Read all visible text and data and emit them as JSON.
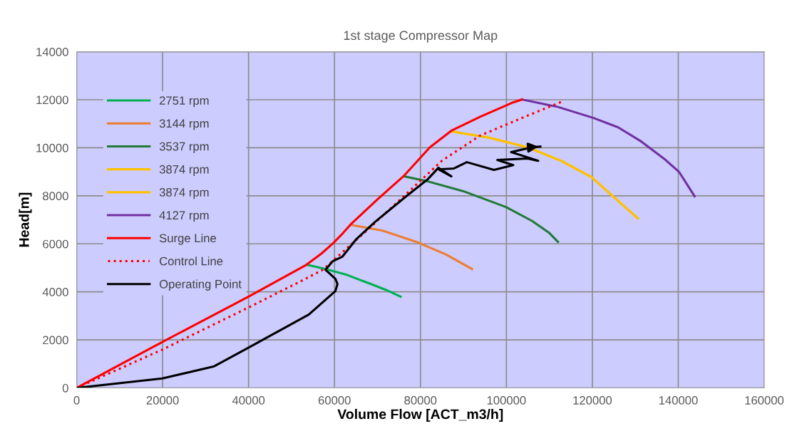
{
  "chart_data": {
    "type": "line",
    "title": "1st stage Compressor Map",
    "xlabel": "Volume Flow [ACT_m3/h]",
    "ylabel": "Head[m]",
    "xlim": [
      0,
      160000
    ],
    "xticks": [
      0,
      20000,
      40000,
      60000,
      80000,
      100000,
      120000,
      140000,
      160000
    ],
    "ylim": [
      0,
      14000
    ],
    "yticks": [
      0,
      2000,
      4000,
      6000,
      8000,
      10000,
      12000,
      14000
    ],
    "grid": true,
    "legend": "top left",
    "series": [
      {
        "name": "2751 rpm",
        "color": "#00b050",
        "x": [
          53500,
          57300,
          63000,
          68400,
          72000,
          75400
        ],
        "values": [
          5130,
          4980,
          4700,
          4330,
          4080,
          3800
        ]
      },
      {
        "name": "3144 rpm",
        "color": "#ed7d31",
        "x": [
          63800,
          71200,
          79500,
          86000,
          92000
        ],
        "values": [
          6790,
          6550,
          6050,
          5550,
          4950
        ]
      },
      {
        "name": "3537 rpm",
        "color": "#217a36",
        "x": [
          76200,
          81700,
          90000,
          99900,
          106000,
          110000,
          112000
        ],
        "values": [
          8810,
          8600,
          8190,
          7530,
          6950,
          6450,
          6080
        ]
      },
      {
        "name": "3874 rpm",
        "color": "#ffc000",
        "x": [
          87200,
          96000,
          104900,
          112700,
          119800,
          125000,
          130600
        ],
        "values": [
          10680,
          10420,
          10020,
          9460,
          8780,
          7950,
          7060
        ]
      },
      {
        "name": "3874 rpm",
        "color": "#ffc000",
        "x": [
          87200,
          96000,
          104900,
          112700,
          119800,
          125000,
          130600
        ],
        "values": [
          10680,
          10420,
          10020,
          9460,
          8780,
          7950,
          7060
        ]
      },
      {
        "name": "4127 rpm",
        "color": "#7030a0",
        "x": [
          103600,
          112000,
          120300,
          126000,
          131400,
          137000,
          140200,
          143800
        ],
        "values": [
          12010,
          11700,
          11240,
          10850,
          10260,
          9500,
          8990,
          7980
        ]
      },
      {
        "name": "Surge Line",
        "color": "#ff0000",
        "x": [
          0,
          20000,
          40000,
          53500,
          57000,
          59650,
          62000,
          64000,
          70000,
          76200,
          82200,
          87200,
          94000,
          101600,
          103600
        ],
        "values": [
          0,
          1920,
          3800,
          5130,
          5600,
          6020,
          6450,
          6850,
          7850,
          8840,
          10020,
          10710,
          11300,
          11890,
          12010
        ]
      },
      {
        "name": "Control Line",
        "color": "#ff0000",
        "line_style": "dotted",
        "x": [
          0,
          20000,
          40000,
          51900,
          57300,
          68400,
          85000,
          93800,
          103600,
          113300
        ],
        "values": [
          0,
          1600,
          3350,
          4420,
          4920,
          6700,
          9460,
          10500,
          11240,
          11950
        ]
      },
      {
        "name": "Operating Point",
        "color": "#000000",
        "x": [
          0,
          19900,
          32000,
          39800,
          54000,
          60200,
          60700,
          60200,
          57900,
          59600,
          61800,
          65100,
          69600,
          76700,
          81700,
          84200,
          87200,
          84200,
          87800,
          90800,
          97100,
          101600,
          97900,
          104900,
          107400,
          101100,
          106000,
          107900
        ],
        "values": [
          0,
          390,
          900,
          1660,
          3050,
          4030,
          4330,
          4540,
          4920,
          5280,
          5460,
          6200,
          6940,
          7980,
          8690,
          9170,
          8810,
          9100,
          9140,
          9400,
          9080,
          9280,
          9490,
          9550,
          9460,
          9820,
          10020,
          10050
        ]
      }
    ]
  }
}
